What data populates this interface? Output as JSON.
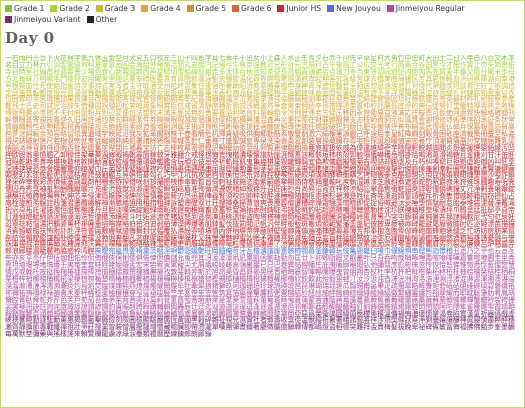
{
  "legend": [
    {
      "label": "Grade 1",
      "color": "#7cc43b"
    },
    {
      "label": "Grade 2",
      "color": "#a8d43a"
    },
    {
      "label": "Grade 3",
      "color": "#c7bd3a"
    },
    {
      "label": "Grade 4",
      "color": "#d9a83a"
    },
    {
      "label": "Grade 5",
      "color": "#d98a3a"
    },
    {
      "label": "Grade 6",
      "color": "#d8663a"
    },
    {
      "label": "Junior HS",
      "color": "#c8262c"
    },
    {
      "label": "New Jouyou",
      "color": "#4f6fd0"
    },
    {
      "label": "Jinmeiyou Regular",
      "color": "#b04a9c"
    },
    {
      "label": "Jinmeiyou Variant",
      "color": "#7a2a70"
    },
    {
      "label": "Other",
      "color": "#222222"
    }
  ],
  "title": "Day 0",
  "grid": {
    "segments": [
      {
        "color": "#7cc43b",
        "text": "一右雨円王音下火花貝学気九休玉金空月犬見五口校左三山子四糸字耳七車手十出女小上森人水正生青夕石赤千川先早草足村大男竹中虫町天田土二日入年白八百文木本名目立力林六"
      },
      {
        "color": "#a8d43a",
        "text": "引羽雲園遠何科夏家歌画回会海絵外角楽活間丸岩顔汽記帰弓牛魚京強教近兄形計元言原戸古午後語工公広交光考行高黄合谷国黒今才細作算止市矢姉思紙寺自時室社弱首秋週春書少場色食心新親図数西声星晴切雪船線前組走多太体台地池知茶昼長鳥朝直通弟店点電刀冬当東答頭同道読内南肉馬売買麦半番父風分聞米歩母方北毎妹万明鳴毛門夜野友用曜来里理話"
      },
      {
        "color": "#c7bd3a",
        "text": "悪安暗医委意育員院飲運泳駅央横屋温化荷界開階寒感漢館岸起期客究急級宮球去橋業曲局銀区苦具君係軽血決研県庫湖向幸港号根祭皿仕死使始指歯詩次事持式実写者主守取酒受州拾終習集住重宿所暑助昭消商章勝乗植申身神真深進世整昔全相送想息速族他打対待代第題炭短談着注柱丁帳調追定庭笛鉄転都度投豆島湯登等動童農波配倍箱畑発反坂板皮悲美鼻筆氷表秒病品負部服福物平返勉放味命面問役薬由油有遊予羊洋葉陽様落流旅両緑礼列練路和"
      },
      {
        "color": "#d9a83a",
        "text": "愛案以衣位囲胃印英栄塩億加果貨課芽改械害街各覚完官管関観願希季紀喜旗器機議求泣救給挙漁共協鏡競極訓軍郡径型景芸欠結建健験固功好候航康告差菜最材昨札刷殺察参産散残士氏史司試児治辞失借種周祝順初松笑唱焼象照賞臣信成省清静席積折節説浅戦選然争倉巣束側続卒孫帯隊達単置仲貯兆腸低底停的典伝徒努灯堂働特得毒熱念敗梅博飯飛費必票標不夫付府副粉兵別辺変便包法望牧末満未脈民無約勇要養浴利陸良料量輪類令冷例歴連老労録"
      },
      {
        "color": "#d98a3a",
        "text": "圧移因永営衛易益液演応往桜恩可仮価河過賀快解格確額刊幹慣眼基寄規技義逆久旧居許境均禁句群経潔件券険検限現減故個護効厚耕鉱構興講混査再災妻採際在財罪雑酸賛支志枝師資飼示似識質舎謝授修述術準序招承証条状常情織職制性政勢精製税責績接設舌絶銭祖素総造像増則測属率損退貸態団断築張提程適敵統銅導徳独任燃能破犯判版比肥非備俵評貧布婦富武復複仏編弁保墓報豊防貿暴務夢迷綿輸余預容略留領"
      },
      {
        "color": "#d8663a",
        "text": "異遺域宇映延沿我灰拡革閣割株干巻看簡危机揮貴疑吸供胸郷勤筋系敬警劇激穴絹権憲源厳己呼誤后孝皇紅降鋼刻穀骨困砂座済裁策冊蚕至私姿視詞誌磁射捨尺若樹収宗就衆従縦縮熟純処署諸除将傷障城蒸針仁垂推寸盛聖誠宣専泉洗染善奏窓創装層操蔵臓存尊宅担探誕段暖値宙忠著庁頂潮賃痛展討党糖届難乳認納脳派拝背肺俳班晩否批秘腹奮並陛閉片補暮宝訪亡忘棒枚幕密盟模訳郵優幼欲翌乱卵覧裏律臨朗論"
      },
      {
        "color": "#c8262c",
        "text": "亜哀握扱依威為偉違維緯壱芋陰隠影鋭越謁閲炎怨宴援煙猿鉛縁汚凹押欧殴翁奥憶臆乙卸穏佳架華菓渦嫁暇禍靴寡箇稼蚊牙雅餓介戒怪拐悔皆塊楷潰壊懐諧劾崖涯慨蓋該概骸垣柿核殻郭較隔獲嚇穫岳顎掛括喝渇葛滑褐轄且釜鎌刈甘汗缶肝冠陥乾勘患貫喚堪換敢棺款閑勧寛歓監緩憾還環韓艦鑑含玩頑企伎忌奇祈軌既飢鬼亀幾棋棄毀畿輝騎宜偽欺儀戯擬犠菊吉喫詰却脚虐及丘朽糾嗅窮巨拒拠虚距御凶叫狂享況峡挟狭恐恭脅矯響驚仰暁凝巾斤菌琴僅緊錦謹襟吟駆惧愚偶遇隅串屈掘窟繰勲薫刑茎契恵啓掲渓蛍傾携継詣慶憬稽憩鶏迎鯨隙撃桁傑肩倹兼剣拳軒圏堅嫌献遣賢謙鍵繭顕懸幻玄弦舷股虎孤弧枯雇誇鼓錮顧互呉娯悟碁勾孔巧甲江坑抗攻更拘肯侯恒洪荒郊貢控梗喉慌硬絞項溝綱酵稿衡購乞拷剛傲豪克酷獄駒込頃昆恨婚痕紺魂墾懇沙唆詐鎖挫采砕宰栽彩斎債催塞歳載剤削柵索酢搾錯咲刹拶撮擦桟惨傘斬暫旨伺刺祉肢施恣脂紫嗣雌摯賜諮侍慈餌璽軸叱疾執湿嫉漆芝赦斜煮遮邪蛇酌釈爵寂朱狩殊珠腫趣寿呪需儒囚舟秀臭袖羞愁酬醜蹴襲汁充柔渋銃獣叔淑粛塾俊瞬旬巡盾准殉循潤遵庶緒如叙徐升召匠床抄肖尚昇沼宵症祥称渉紹訟掌晶焦衝粧詔奨詳彰憧償礁鐘丈冗浄剰畳壌嬢錠譲醸拭殖飾触嘱辱尻伸芯辛侵津唇娠振浸紳診寝慎審震薪刃尽迅甚陣尋腎須吹炊帥粋衰酔遂睡穂随髄枢崇据杉裾瀬是姓征斉牲凄逝婿誓請醒斥析脊隻惜戚跡籍拙窃摂仙占扇栓旋煎羨腺詮践箋潜遷薦繊鮮禅漸膳繕狙阻租措粗疎訴塑遡礎双壮荘捜挿桑掃曹曽爽喪痩葬僧遭槽踪燥霜騒藻憎贈即促捉俗賊遜汰妥唾堕惰駄耐怠胎泰堆袋逮替滞戴滝択沢卓拓託濯諾濁但脱奪棚誰丹旦胆淡嘆端綻鍛弾壇恥致遅痴稚緻畜逐蓄秩窒嫡抽衷酎鋳駐弔挑彫眺釣貼超跳徴嘲澄聴懲勅捗沈珍朕陳鎮椎墜塚漬坪爪鶴呈廷抵邸亭貞帝訂逓偵堤艇締諦泥摘滴溺迭哲徹撤添塡殿斗吐妬途渡塗賭奴怒到逃倒凍唐桃透悼盗陶塔搭棟痘筒稲踏謄藤闘騰洞胴瞳峠匿督篤凸突屯豚頓貪鈍曇丼那謎鍋軟尼弐匂虹尿妊忍寧捻粘悩濃把覇婆罵杯排廃輩培陪媒賠伯拍泊迫剝舶薄漠縛爆箸肌鉢髪伐抜罰閥氾帆汎伴畔般販斑搬煩頒範繁藩蛮盤妃彼披卑疲被扉碑罷避尾眉微膝肘匹泌姫漂苗描猫浜賓頻敏瓶扶怖附訃赴浮符普腐敷膚賦譜侮舞封伏幅覆払沸紛雰噴墳憤丙併柄塀幣弊蔽餅壁璧癖蔑偏遍哺捕舗募慕簿芳邦奉抱泡胞俸倣峰砲崩蜂飽褒縫乏忙坊妨房肪某冒剖紡傍帽貌膨謀頰朴睦僕墨撲没勃堀奔翻凡盆麻摩磨魔昧埋膜枕又抹慢漫魅岬蜜妙眠矛霧娘冥銘滅免麺茂妄盲耗猛網黙紋冶弥厄躍闇喩愉諭癒唯幽悠湧猶裕雄誘憂融与誉妖庸揚揺溶腰瘍踊窯擁謡抑沃翼拉裸羅雷頼絡酪辣濫藍欄吏痢履璃離慄柳竜粒隆硫侶虜慮了涼猟陵僚寮療糧厘倫隣瑠涙累塁励戻鈴零霊隷齢麗暦劣烈裂恋廉錬呂炉賂露弄郎浪廊楼漏籠麓賄脇惑枠湾腕"
      },
      {
        "color": "#4f6fd0",
        "text": "挨曖宛嵐畏萎椅彙茨咽淫唄鬱怨媛艶旺岡臆俺苛牙瓦楷潰諧崖蓋骸柿顎葛釜鎌韓玩伎亀毀畿臼嗅巾僅錦惧串窟熊詣憬稽"
      },
      {
        "color": "#b04a9c",
        "text": "丑丞乃之乎也云亘亙些亦亥亨亮仔伊伍伽佃佑伶侃侑俄俠俣俐倭俱倦倖偲傭儲允兎兜其冴凌凜凛凧凪凰凱函劉劫勁勿匡廿卜卯卿厨厩叉叡叢叶只吾吞吻哉哨啄哩喬喧喰喋嘩嘉嘗噌噂圃圭坐尭堯坦埴堰堺堵塙壕壬夷奄奎套娃姪姥娩嬉孟宏宋宕宥寅寓寵尖尤屑峨峻崚嵯嵩嶺巌巖已巳巴巷巽帖幌幡庄庇庚庵廓廟廻弘弛彌彗彦彪彬徠忽怜恢恰恕悌惟惚悉惇惹惺惣慧憐戊或戟托按挺挽掬捲捷捺捧掠揃摑摺撒撰撞播撫擢孜敦斐斡斧斯於旭昂昊昏昌昴晏晃晄晋晒晦晨智暉暢曙曝曳曾朋朔杏杖杜李杭杵杷枇柑柴柘柊柏柾柚桧檜栞桔桂栖桐栗梧梓梢梛梯桶梶椛梁棲椋椀楯楚楕椿楠楓椰楢楊榎樺榊榛槙槇槍槌樫槻樟樋橘樽橙檎檀櫂櫛櫓欣欽歎此殆毅毘毬汀汝汐汲沌沓沫洸洲洵洛浩浬淵淳渚淀淋渥渾湘湊湛溢滉溜漱漕漣澪濡瀕灘灸灼烏焰焚煌煤煉熙燕燎燦燭燿爾牒牟牡牽犀狼猪獅玖珂珈珊珀玲琢琉瑛琥琶琵琳瑚瑞瑶瑳瓜瓢甥甫畠畢疋疏瘦皐皓眸瞥矩砦砥砧硯碓碗碩碧磐磯祇祢禰祐祷禱禄祿禎禽禾秦秤稀稔稟稜穣穰穿窄窪窺竣竪竺竿笈笹笙笠筈筑箕箔篇篠簞簾籾粥粟糊紘紗紐絃紬絆絢綺綜綴緋綾綸縞徽繫繡纂纏羚翔翠耀而耶耽聡肇肋肴胤胡脩腔膏臥舜舵芥芹芭芙芦苑茄苔苺茅茉茸茜莞荻莫莉菅菫菖萄菩萌萠萊菱葦葵萱葺萩董葡蓑蒔蒐蒼蒲蒙蓉蓮蔭蔣蔦蓬蔓蕎蕨蕉蕃蕪薙蕾蕗藁薩蘇蘭蝦蝶螺蟬蟹蠟衿袈袴裡裟裳襖訊訣註詢詫誼諏諄諒謂諺讃豹貰賑赳跨蹄蹟輔輯輿轟辰辻迂迄辿迪迦這逞逗逢遥遙遁遼邑祁郁鄭酉醇醐醍醬釉釘釧鋒鋸錐錆錫鍬鎧閃閏閤阿陀隈隼雀雁雛雫霞靖鞄鞍鞘鞠鞭頁頌頗頰顚颯饗馨馴馳駕駿驍魁魯鮎鯉鯛鰯鱒鱗鳩鳶鳳鴨鴻鵜鵬鷗鷲鷺鷹麒麟麿黎黛鼎"
      },
      {
        "color": "#7a2a70",
        "text": "亞惡爲榮衞謁圓緣薗應櫻奧橫溫價禍悔海壞懷樂渴卷陷寬漢氣祈器僞戲虛峽狹響曉勤謹駈勳薰惠揭鷄藝擊縣儉劍險圈檢顯驗嚴廣恆黃國黑穀碎雜祉視兒濕實社者煮壽收臭從澁獸縱祝暑署緖諸敍將祥涉燒獎條狀乘淨剩疊孃讓釀神眞寢愼盡粹醉穗瀨齊靜攝節專戰纖禪祖壯爭莊搜巢曾裝僧層瘦騷增憎藏贈臟卽帶滯瀧單嘆團彈晝鑄著廳徵聽懲鎭轉傳都嶋燈盜稻德突難拜盃賣梅髮拔晚卑祕碑賓敏冨侮福拂佛勉步峯墨飜每萬默埜彌藥與搖樣謠來賴覽欄龍虜凉綠淚壘類禮曆歷練鍊郞朗廊錄"
      }
    ]
  }
}
